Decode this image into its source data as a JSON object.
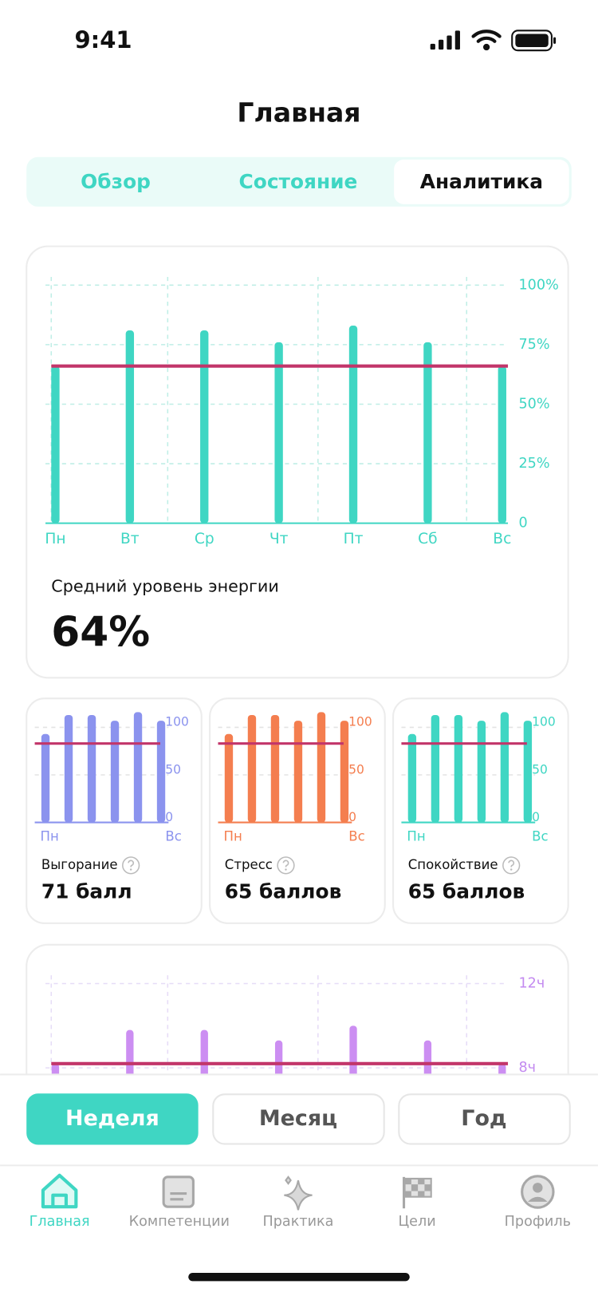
{
  "status_bar": {
    "time": "9:41"
  },
  "header": {
    "title": "Главная"
  },
  "tabs": [
    "Обзор",
    "Состояние",
    "Аналитика"
  ],
  "chart_data": [
    {
      "type": "bar",
      "categories": [
        "Пн",
        "Вт",
        "Ср",
        "Чт",
        "Пт",
        "Сб",
        "Вс"
      ],
      "values": [
        66,
        81,
        81,
        76,
        83,
        76,
        66
      ],
      "color": "#3fd6c3",
      "average": 66,
      "average_color": "#c2356a",
      "ylim": [
        0,
        100
      ],
      "yticks": [
        0,
        {
          "value": 25,
          "label": "25%"
        },
        {
          "value": 50,
          "label": "50%"
        },
        {
          "value": 75,
          "label": "75%"
        },
        {
          "value": 100,
          "label": "100%"
        }
      ],
      "grid": true,
      "summary_label": "Средний уровень энергии",
      "summary": "64%"
    },
    {
      "type": "bar",
      "title": "Выгорание",
      "score": "71 балл",
      "categories": [
        "Пн",
        null,
        null,
        null,
        null,
        "Вс"
      ],
      "values": [
        93,
        113,
        113,
        107,
        116,
        107
      ],
      "color": "#8b93ee",
      "average": 83,
      "average_color": "#c2356a",
      "ylim": [
        0,
        120
      ],
      "yticks": [
        0,
        50,
        100
      ],
      "grid": true
    },
    {
      "type": "bar",
      "title": "Стресс",
      "score": "65 баллов",
      "categories": [
        "Пн",
        null,
        null,
        null,
        null,
        "Вс"
      ],
      "values": [
        93,
        113,
        113,
        107,
        116,
        107
      ],
      "color": "#f47e4f",
      "average": 83,
      "average_color": "#c2356a",
      "ylim": [
        0,
        120
      ],
      "yticks": [
        0,
        50,
        100
      ],
      "grid": true
    },
    {
      "type": "bar",
      "title": "Спокойствие",
      "score": "65 баллов",
      "categories": [
        "Пн",
        null,
        null,
        null,
        null,
        "Вс"
      ],
      "values": [
        93,
        113,
        113,
        107,
        116,
        107
      ],
      "color": "#3fd6c3",
      "average": 83,
      "average_color": "#c2356a",
      "ylim": [
        0,
        120
      ],
      "yticks": [
        0,
        50,
        100
      ],
      "grid": true
    },
    {
      "type": "bar",
      "values": [
        8.2,
        9.8,
        9.8,
        9.3,
        10,
        9.3,
        8.2
      ],
      "color": "#cc8ef2",
      "average": 8.2,
      "average_color": "#c2356a",
      "ylim": [
        0,
        12
      ],
      "yticks": [
        {
          "value": 8,
          "label": "8ч"
        },
        {
          "value": 12,
          "label": "12ч"
        }
      ],
      "grid": true
    }
  ],
  "period_buttons": [
    "Неделя",
    "Месяц",
    "Год"
  ],
  "nav": [
    "Главная",
    "Компетенции",
    "Практика",
    "Цели",
    "Профиль"
  ]
}
